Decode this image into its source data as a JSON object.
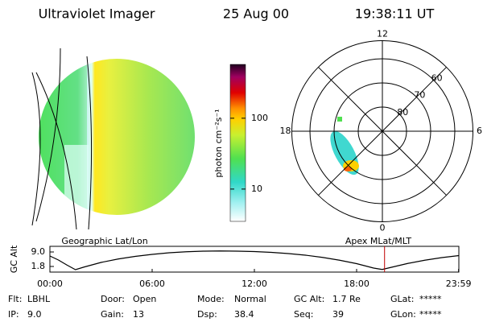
{
  "header": {
    "title": "Ultraviolet Imager",
    "date": "25 Aug 00",
    "time": "19:38:11 UT"
  },
  "image_panel": {
    "caption": "Geographic Lat/Lon"
  },
  "colorbar": {
    "label": "photon cm⁻²s⁻¹",
    "scale": "log",
    "clim": [
      3.5,
      575
    ],
    "ticks": [
      10,
      100
    ]
  },
  "polar_panel": {
    "caption": "Apex MLat/MLT",
    "rlim": [
      90,
      52.5
    ],
    "rticks": [
      80,
      70,
      60
    ],
    "mlt_ticks": [
      12,
      18,
      0,
      6
    ]
  },
  "chart_data": {
    "type": "line",
    "ylabel": "GC Alt",
    "x": [
      0,
      0.5,
      1,
      1.5,
      2,
      3,
      4,
      5,
      6,
      7,
      8,
      9,
      10,
      11,
      12,
      13,
      14,
      15,
      16,
      17,
      18,
      19,
      19.5,
      20,
      21,
      22,
      23,
      24
    ],
    "values": [
      7.0,
      5.0,
      2.5,
      0.2,
      1.5,
      3.8,
      5.5,
      6.8,
      7.8,
      8.6,
      9.1,
      9.4,
      9.5,
      9.4,
      9.2,
      8.8,
      8.2,
      7.4,
      6.3,
      4.9,
      3.2,
      1.0,
      0.3,
      1.3,
      3.3,
      4.9,
      6.2,
      7.2
    ],
    "color": "#000000",
    "xlim": [
      0,
      24
    ],
    "xticks": [
      {
        "value": 0,
        "label": "00:00"
      },
      {
        "value": 6,
        "label": "06:00"
      },
      {
        "value": 12,
        "label": "12:00"
      },
      {
        "value": 18,
        "label": "18:00"
      },
      {
        "value": 23.983,
        "label": "23:59"
      }
    ],
    "ylim": [
      -1,
      11.8
    ],
    "yticks": [
      {
        "value": 9,
        "label": "9.0"
      },
      {
        "value": 1.8,
        "label": "1.8"
      }
    ],
    "marker_x": 19.64,
    "marker_color": "#c00000"
  },
  "status": {
    "rows": [
      [
        {
          "label": "Flt:",
          "value": "LBHL"
        },
        {
          "label": "Door:",
          "value": "Open"
        },
        {
          "label": "Mode:",
          "value": "Normal"
        },
        {
          "label": "GC Alt:",
          "value": "1.7 Re"
        },
        {
          "label": "GLat:",
          "value": "*****"
        }
      ],
      [
        {
          "label": "IP:",
          "value": "9.0"
        },
        {
          "label": "Gain:",
          "value": "13"
        },
        {
          "label": "Dsp:",
          "value": "38.4"
        },
        {
          "label": "Seq:",
          "value": "39"
        },
        {
          "label": "GLon:",
          "value": "*****"
        }
      ]
    ]
  }
}
